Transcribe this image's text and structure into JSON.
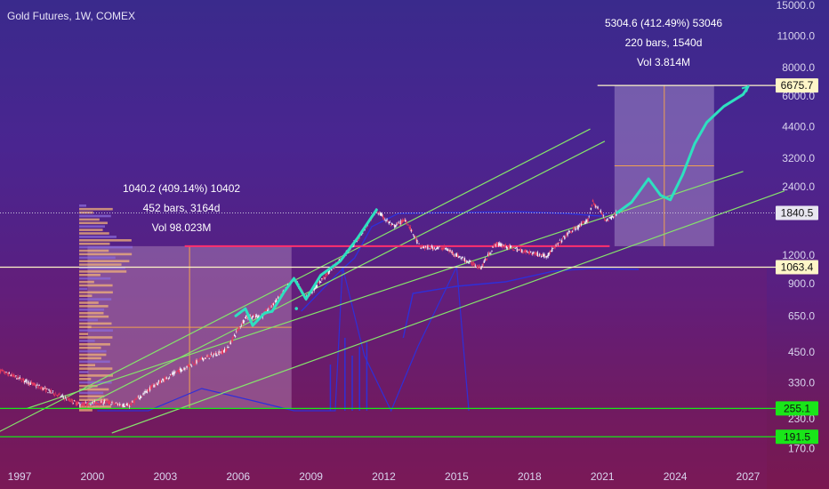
{
  "title": "Gold Futures, 1W, COMEX",
  "chart_data": {
    "type": "candlestick",
    "symbol": "Gold Futures",
    "interval": "1W",
    "exchange": "COMEX",
    "scale": "log",
    "x_ticks": [
      "1997",
      "2000",
      "2003",
      "2006",
      "2009",
      "2012",
      "2015",
      "2018",
      "2021",
      "2024",
      "2027"
    ],
    "y_ticks": [
      "15000.0",
      "11000.0",
      "8000.0",
      "6000.0",
      "4400.0",
      "3200.0",
      "2400.0",
      "1800.0",
      "1200.0",
      "900.0",
      "650.0",
      "450.0",
      "330.0",
      "230.0",
      "170.0"
    ],
    "price_tags": [
      {
        "label": "6675.7",
        "value": 6675.7,
        "color": "#fff6c8"
      },
      {
        "label": "1840.5",
        "value": 1840.5,
        "color": "#e8e6f0"
      },
      {
        "label": "1063.4",
        "value": 1063.4,
        "color": "#fff6c8"
      },
      {
        "label": "255.1",
        "value": 255.1,
        "color": "#19e619"
      },
      {
        "label": "191.5",
        "value": 191.5,
        "color": "#19e619"
      }
    ],
    "measurements": [
      {
        "line1": "1040.2 (409.14%) 10402",
        "line2": "452 bars, 3164d",
        "line3": "Vol 98.023M"
      },
      {
        "line1": "5304.6 (412.49%) 53046",
        "line2": "220 bars, 1540d",
        "line3": "Vol 3.814M"
      }
    ],
    "price_path": [
      {
        "x": 1996.0,
        "y": 380
      },
      {
        "x": 1997.0,
        "y": 345
      },
      {
        "x": 1998.5,
        "y": 295
      },
      {
        "x": 1999.5,
        "y": 265
      },
      {
        "x": 2000.5,
        "y": 272
      },
      {
        "x": 2001.5,
        "y": 262
      },
      {
        "x": 2002.5,
        "y": 320
      },
      {
        "x": 2003.5,
        "y": 370
      },
      {
        "x": 2004.5,
        "y": 420
      },
      {
        "x": 2005.5,
        "y": 460
      },
      {
        "x": 2006.3,
        "y": 640
      },
      {
        "x": 2007.0,
        "y": 650
      },
      {
        "x": 2007.9,
        "y": 830
      },
      {
        "x": 2008.3,
        "y": 950
      },
      {
        "x": 2008.8,
        "y": 780
      },
      {
        "x": 2009.5,
        "y": 950
      },
      {
        "x": 2010.2,
        "y": 1150
      },
      {
        "x": 2010.9,
        "y": 1400
      },
      {
        "x": 2011.7,
        "y": 1880
      },
      {
        "x": 2012.4,
        "y": 1600
      },
      {
        "x": 2012.9,
        "y": 1720
      },
      {
        "x": 2013.5,
        "y": 1300
      },
      {
        "x": 2014.5,
        "y": 1290
      },
      {
        "x": 2015.5,
        "y": 1120
      },
      {
        "x": 2016.0,
        "y": 1060
      },
      {
        "x": 2016.6,
        "y": 1350
      },
      {
        "x": 2017.5,
        "y": 1270
      },
      {
        "x": 2018.7,
        "y": 1190
      },
      {
        "x": 2019.6,
        "y": 1500
      },
      {
        "x": 2020.4,
        "y": 1700
      },
      {
        "x": 2020.6,
        "y": 2060
      },
      {
        "x": 2021.2,
        "y": 1700
      },
      {
        "x": 2021.6,
        "y": 1840
      }
    ],
    "projection_path": [
      {
        "x": 2021.6,
        "y": 1840
      },
      {
        "x": 2022.2,
        "y": 2050
      },
      {
        "x": 2022.9,
        "y": 2600
      },
      {
        "x": 2023.4,
        "y": 2200
      },
      {
        "x": 2023.8,
        "y": 2100
      },
      {
        "x": 2024.3,
        "y": 2700
      },
      {
        "x": 2024.8,
        "y": 3700
      },
      {
        "x": 2025.3,
        "y": 4600
      },
      {
        "x": 2026.0,
        "y": 5400
      },
      {
        "x": 2026.8,
        "y": 6100
      },
      {
        "x": 2027.0,
        "y": 6600
      }
    ],
    "historical_analog": [
      {
        "x": 2005.9,
        "y": 650
      },
      {
        "x": 2006.3,
        "y": 700
      },
      {
        "x": 2006.6,
        "y": 590
      },
      {
        "x": 2007.1,
        "y": 670
      },
      {
        "x": 2007.4,
        "y": 680
      },
      {
        "x": 2007.9,
        "y": 830
      },
      {
        "x": 2008.3,
        "y": 950
      },
      {
        "x": 2008.8,
        "y": 770
      },
      {
        "x": 2009.4,
        "y": 980
      },
      {
        "x": 2010.2,
        "y": 1130
      },
      {
        "x": 2010.9,
        "y": 1420
      },
      {
        "x": 2011.7,
        "y": 1900
      }
    ],
    "channel_lines": [
      {
        "x1": 1999.8,
        "y1": 265,
        "x2": 2021.1,
        "y2": 3800
      },
      {
        "x1": 1996.1,
        "y1": 200,
        "x2": 2020.5,
        "y2": 4300
      },
      {
        "x1": 1997.3,
        "y1": 255,
        "x2": 2026.8,
        "y2": 2800
      },
      {
        "x1": 2000.8,
        "y1": 199,
        "x2": 2028.5,
        "y2": 2300
      }
    ],
    "horizontal_levels": [
      255.1,
      191.5,
      1063.4,
      6675.7,
      1840.5
    ],
    "resistance_band": {
      "x1": 2003.8,
      "x2": 2021.3,
      "y": 1315
    },
    "projection_box": {
      "x1": 2021.5,
      "x2": 2025.6,
      "y_low": 1315,
      "y_high": 6675.7
    },
    "measure_box": {
      "x1": 1999.8,
      "x2": 2008.2,
      "y_low": 255.1,
      "y_high": 1315
    },
    "colors": {
      "up": "#f2eff9",
      "down": "#e53a60",
      "price_line": "#2ee0c0",
      "channel": "#86e36c",
      "volume": "#2f2fd8",
      "profile": "#f2b27a",
      "orange_marker": "#f0a050",
      "support": "#19e619",
      "resistance": "#ff2f6e"
    }
  }
}
